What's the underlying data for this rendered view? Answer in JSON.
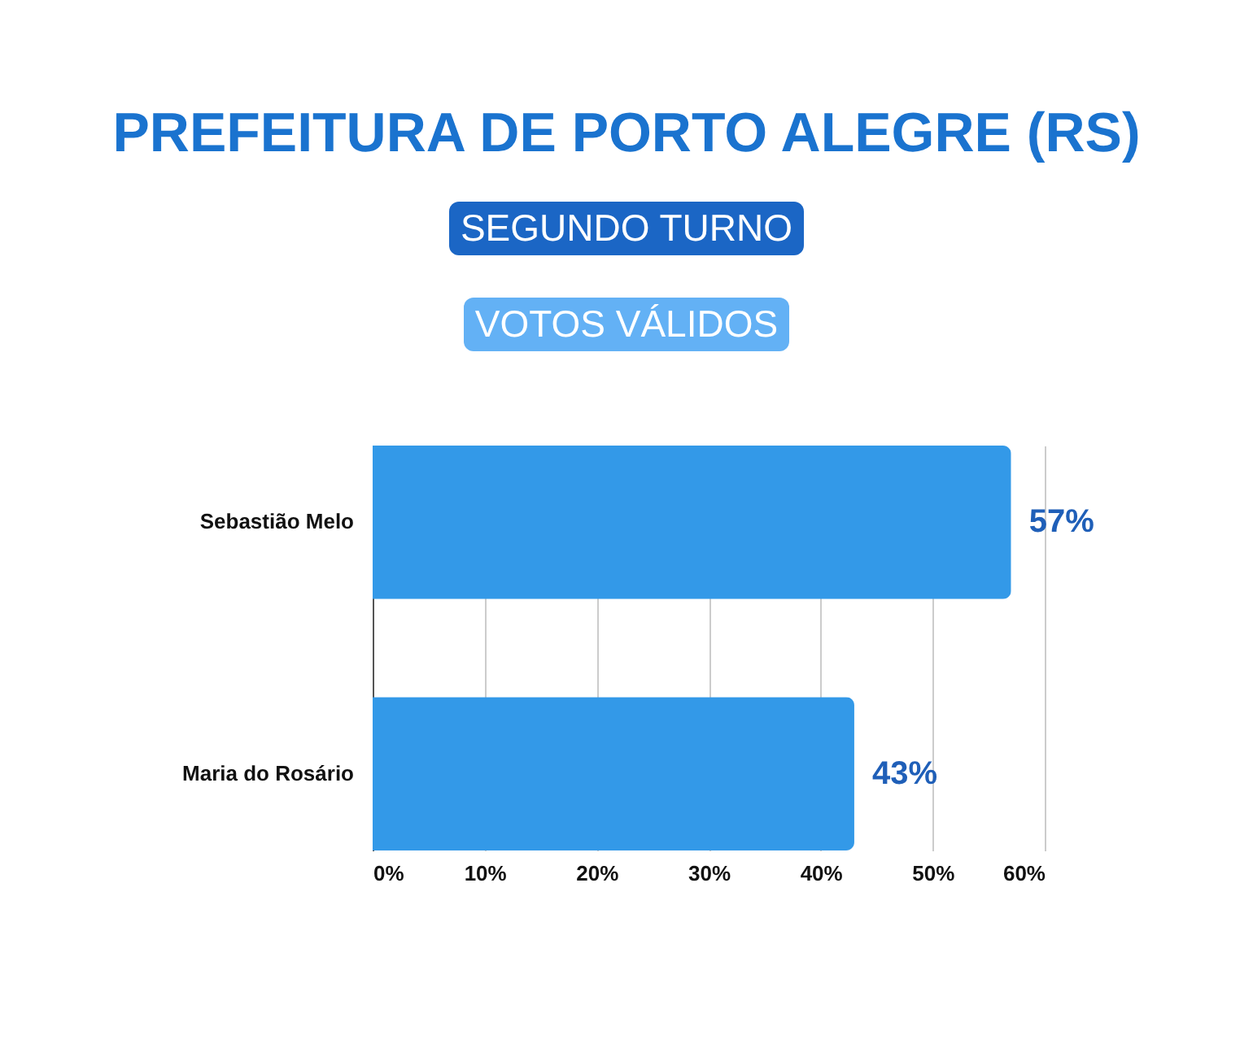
{
  "chart_data": {
    "type": "bar",
    "orientation": "horizontal",
    "title": "PREFEITURA DE PORTO ALEGRE (RS)",
    "subtitle": "SEGUNDO TURNO",
    "annotations": [
      "VOTOS VÁLIDOS"
    ],
    "categories": [
      "Sebastião Melo",
      "Maria do Rosário"
    ],
    "values": [
      57,
      43
    ],
    "color": "#3399e8",
    "value_labels": [
      "57%",
      "43%"
    ],
    "xlim": [
      0,
      60
    ],
    "xticks": [
      {
        "value": 0,
        "label": "0%"
      },
      {
        "value": 10,
        "label": "10%"
      },
      {
        "value": 20,
        "label": "20%"
      },
      {
        "value": 30,
        "label": "30%"
      },
      {
        "value": 40,
        "label": "40%"
      },
      {
        "value": 50,
        "label": "50%"
      },
      {
        "value": 60,
        "label": "60%"
      }
    ],
    "grid": "x"
  }
}
